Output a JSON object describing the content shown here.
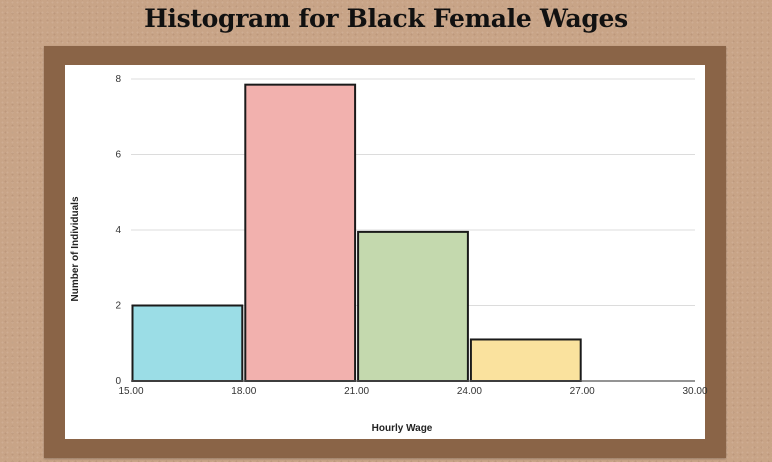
{
  "page": {
    "title": "Histogram for Black Female Wages"
  },
  "chart_data": {
    "type": "bar",
    "title": "",
    "xlabel": "Hourly Wage",
    "ylabel": "Number of Individuals",
    "x_ticks": [
      "15.00",
      "18.00",
      "21.00",
      "24.00",
      "27.00",
      "30.00"
    ],
    "x_tick_values": [
      15,
      18,
      21,
      24,
      27,
      30
    ],
    "y_ticks": [
      0,
      2,
      4,
      6,
      8
    ],
    "xlim": [
      15,
      30
    ],
    "ylim": [
      0,
      8
    ],
    "grid": true,
    "bins": [
      {
        "start": 15,
        "end": 18,
        "value": 2,
        "color": "#9bdde6"
      },
      {
        "start": 18,
        "end": 21,
        "value": 7.85,
        "color": "#f2b1ae"
      },
      {
        "start": 21,
        "end": 24,
        "value": 3.95,
        "color": "#c4d9ae"
      },
      {
        "start": 24,
        "end": 27,
        "value": 1.1,
        "color": "#fae29e"
      }
    ]
  },
  "colors": {
    "background": "#c8a487",
    "frame": "#8a6447",
    "bar_outline": "#1a1a1a"
  }
}
